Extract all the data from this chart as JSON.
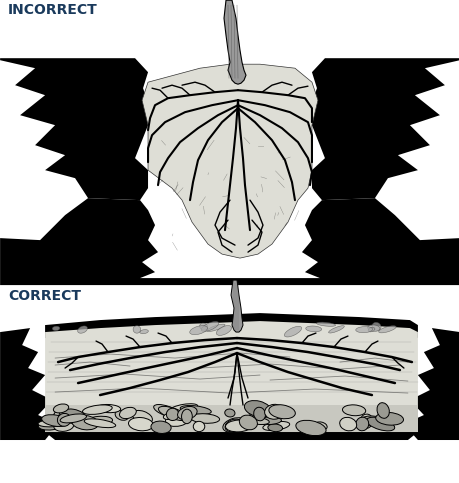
{
  "title_incorrect": "INCORRECT",
  "title_correct": "CORRECT",
  "title_color": "#1a3a5c",
  "title_fontsize": 10,
  "title_fontweight": "bold",
  "bg_color": "#ffffff",
  "fig_width": 4.6,
  "fig_height": 4.83,
  "dpi": 100
}
